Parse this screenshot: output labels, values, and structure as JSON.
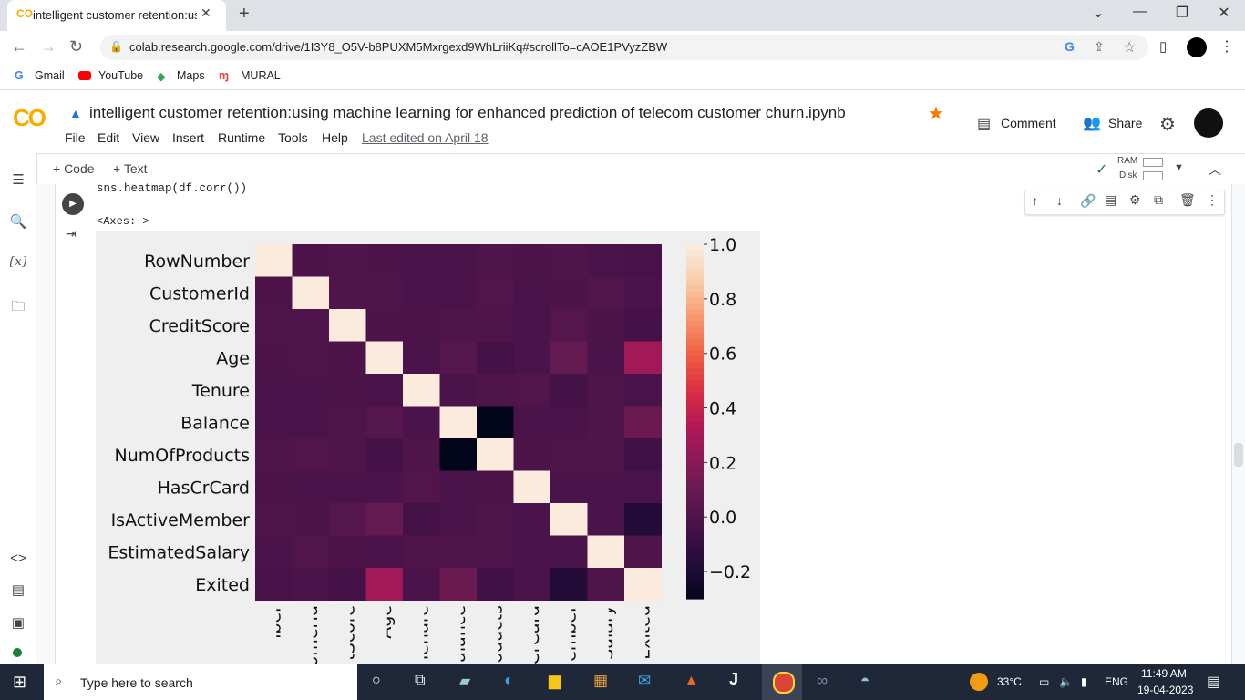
{
  "browser": {
    "tab_title": "intelligent customer retention:us",
    "url": "colab.research.google.com/drive/1I3Y8_O5V-b8PUXM5Mxrgexd9WhLriiKq#scrollTo=cAOE1PVyzZBW",
    "bookmarks": [
      "Gmail",
      "YouTube",
      "Maps",
      "MURAL"
    ]
  },
  "colab": {
    "logo_text": "CO",
    "title": "intelligent customer retention:using machine learning for enhanced prediction  of telecom customer churn.ipynb",
    "menu": [
      "File",
      "Edit",
      "View",
      "Insert",
      "Runtime",
      "Tools",
      "Help"
    ],
    "last_edited": "Last edited on April 18",
    "comment_label": "Comment",
    "share_label": "Share",
    "add_code": "+ Code",
    "add_text": "+ Text",
    "ram_label": "RAM",
    "disk_label": "Disk"
  },
  "cell": {
    "code": "sns.heatmap(df.corr())",
    "output_text": "<Axes: >"
  },
  "chart_data": {
    "type": "heatmap",
    "labels": [
      "RowNumber",
      "CustomerId",
      "CreditScore",
      "Age",
      "Tenure",
      "Balance",
      "NumOfProducts",
      "HasCrCard",
      "IsActiveMember",
      "EstimatedSalary",
      "Exited"
    ],
    "x_tick_labels_visible": [
      "umber",
      "omerId",
      "tScore",
      "Age",
      "Tenure",
      "alance",
      "oducts",
      "CrCard",
      "ember",
      "Salary",
      "Exited"
    ],
    "colorbar_ticks": [
      "1.0",
      "0.8",
      "0.6",
      "0.4",
      "0.2",
      "0.0",
      "−0.2"
    ],
    "vmin": -0.3,
    "vmax": 1.0,
    "matrix": [
      [
        1.0,
        0.0,
        0.01,
        0.0,
        -0.01,
        -0.01,
        0.01,
        0.0,
        0.01,
        -0.01,
        -0.02
      ],
      [
        0.0,
        1.0,
        0.01,
        0.01,
        -0.01,
        -0.01,
        0.02,
        -0.01,
        0.0,
        0.02,
        -0.01
      ],
      [
        0.01,
        0.01,
        1.0,
        0.0,
        0.0,
        0.01,
        0.01,
        -0.01,
        0.03,
        0.0,
        -0.03
      ],
      [
        0.0,
        0.01,
        0.0,
        1.0,
        -0.01,
        0.03,
        -0.03,
        -0.01,
        0.09,
        -0.01,
        0.29
      ],
      [
        -0.01,
        -0.01,
        0.0,
        -0.01,
        1.0,
        -0.01,
        0.01,
        0.02,
        -0.03,
        0.01,
        -0.01
      ],
      [
        -0.01,
        -0.01,
        0.01,
        0.03,
        -0.01,
        1.0,
        -0.3,
        -0.01,
        -0.01,
        0.01,
        0.12
      ],
      [
        0.01,
        0.02,
        0.01,
        -0.03,
        0.01,
        -0.3,
        1.0,
        0.0,
        0.01,
        0.01,
        -0.05
      ],
      [
        0.0,
        -0.01,
        -0.01,
        -0.01,
        0.02,
        -0.01,
        0.0,
        1.0,
        -0.01,
        -0.01,
        -0.01
      ],
      [
        0.01,
        0.0,
        0.03,
        0.09,
        -0.03,
        -0.01,
        0.01,
        -0.01,
        1.0,
        -0.01,
        -0.16
      ],
      [
        -0.01,
        0.02,
        0.0,
        -0.01,
        0.01,
        0.01,
        0.01,
        -0.01,
        -0.01,
        1.0,
        0.01
      ],
      [
        -0.02,
        -0.01,
        -0.03,
        0.29,
        -0.01,
        0.12,
        -0.05,
        -0.01,
        -0.16,
        0.01,
        1.0
      ]
    ]
  },
  "taskbar": {
    "search_placeholder": "Type here to search",
    "weather": "33°C",
    "language": "ENG",
    "time": "11:49 AM",
    "date": "19-04-2023"
  }
}
